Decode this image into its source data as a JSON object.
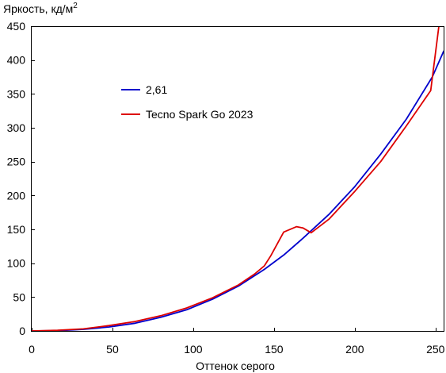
{
  "chart_data": {
    "type": "line",
    "title": "",
    "ylabel": "Яркость, кд/м",
    "ylabel_superscript": "2",
    "xlabel": "Оттенок серого",
    "xlim": [
      0,
      255
    ],
    "ylim": [
      0,
      450
    ],
    "xticks": [
      0,
      50,
      100,
      150,
      200,
      250
    ],
    "yticks": [
      0,
      50,
      100,
      150,
      200,
      250,
      300,
      350,
      400,
      450
    ],
    "xtick_labels": [
      "0",
      "50",
      "100",
      "150",
      "200",
      "250"
    ],
    "ytick_labels": [
      "0",
      "50",
      "100",
      "150",
      "200",
      "250",
      "300",
      "350",
      "400",
      "450"
    ],
    "grid": false,
    "legend_position": "upper-left-inside",
    "series": [
      {
        "name": "2,61",
        "color": "#0000cc",
        "x": [
          0,
          16,
          32,
          48,
          64,
          80,
          96,
          112,
          128,
          144,
          156,
          168,
          184,
          200,
          216,
          232,
          248,
          255
        ],
        "y": [
          0,
          0.4,
          2.3,
          5.9,
          11.4,
          20.3,
          31.3,
          47,
          66.2,
          90.8,
          112,
          137,
          172,
          213,
          261,
          313,
          375,
          413
        ]
      },
      {
        "name": "Tecno Spark Go 2023",
        "color": "#dd0000",
        "x": [
          0,
          16,
          32,
          48,
          64,
          80,
          96,
          112,
          128,
          138,
          144,
          148,
          156,
          164,
          168,
          173,
          184,
          200,
          216,
          232,
          247,
          252
        ],
        "y": [
          0,
          1,
          3,
          8,
          14,
          22.5,
          34,
          49,
          68,
          84,
          96,
          111,
          146,
          154,
          152,
          145,
          165,
          206,
          250,
          303,
          355,
          449
        ]
      }
    ]
  }
}
